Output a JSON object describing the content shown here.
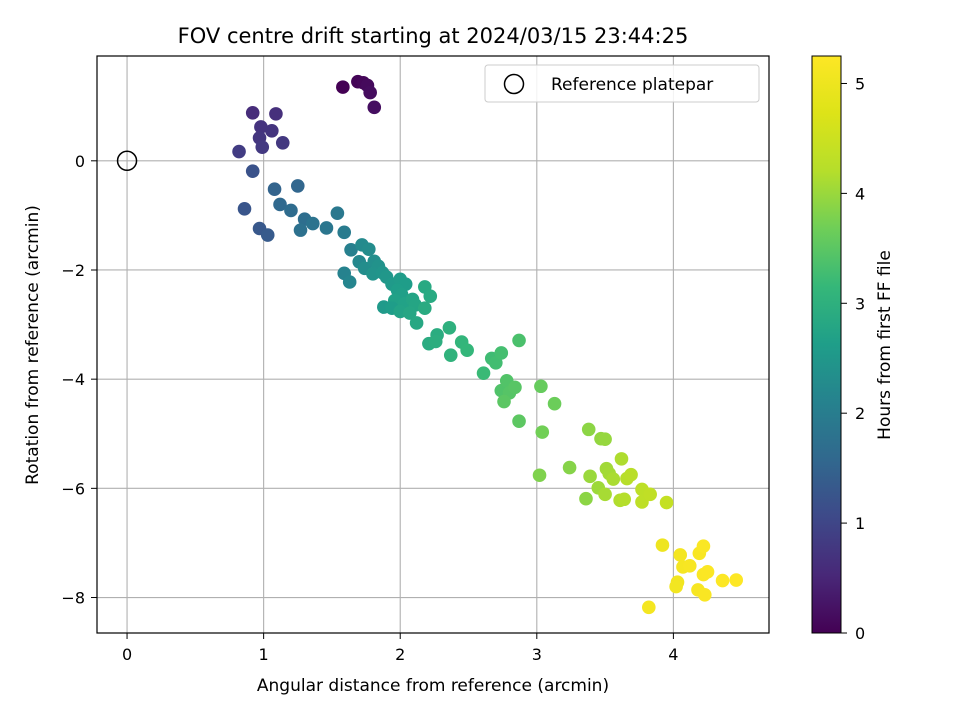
{
  "chart_data": {
    "type": "scatter",
    "title": "FOV centre drift starting at 2024/03/15 23:44:25",
    "xlabel": "Angular distance from reference (arcmin)",
    "ylabel": "Rotation from reference (arcmin)",
    "xlim": [
      -0.22,
      4.7
    ],
    "ylim": [
      -8.65,
      1.92
    ],
    "xticks": [
      0,
      1,
      2,
      3,
      4
    ],
    "yticks": [
      -8,
      -6,
      -4,
      -2,
      0
    ],
    "grid": true,
    "legend": {
      "label": "Reference platepar",
      "position": "top-right"
    },
    "reference_point": {
      "x": 0,
      "y": 0
    },
    "colorbar": {
      "label": "Hours from first FF file",
      "colormap": "viridis",
      "range": [
        0,
        5.25
      ],
      "ticks": [
        0,
        1,
        2,
        3,
        4,
        5
      ]
    },
    "points": [
      {
        "x": 1.58,
        "y": 1.35,
        "c": 0.0
      },
      {
        "x": 1.69,
        "y": 1.45,
        "c": 0.05
      },
      {
        "x": 1.73,
        "y": 1.43,
        "c": 0.08
      },
      {
        "x": 1.76,
        "y": 1.38,
        "c": 0.12
      },
      {
        "x": 1.78,
        "y": 1.25,
        "c": 0.15
      },
      {
        "x": 1.81,
        "y": 0.98,
        "c": 0.18
      },
      {
        "x": 0.92,
        "y": 0.88,
        "c": 0.6
      },
      {
        "x": 1.09,
        "y": 0.86,
        "c": 0.65
      },
      {
        "x": 0.98,
        "y": 0.62,
        "c": 0.7
      },
      {
        "x": 1.06,
        "y": 0.55,
        "c": 0.72
      },
      {
        "x": 0.97,
        "y": 0.42,
        "c": 0.75
      },
      {
        "x": 1.14,
        "y": 0.33,
        "c": 0.78
      },
      {
        "x": 0.99,
        "y": 0.25,
        "c": 0.8
      },
      {
        "x": 0.82,
        "y": 0.17,
        "c": 0.85
      },
      {
        "x": 0.92,
        "y": -0.19,
        "c": 1.2
      },
      {
        "x": 0.86,
        "y": -0.88,
        "c": 1.25
      },
      {
        "x": 1.08,
        "y": -0.52,
        "c": 1.5
      },
      {
        "x": 1.25,
        "y": -0.46,
        "c": 1.55
      },
      {
        "x": 1.12,
        "y": -0.8,
        "c": 1.6
      },
      {
        "x": 1.2,
        "y": -0.91,
        "c": 1.65
      },
      {
        "x": 1.3,
        "y": -1.07,
        "c": 1.7
      },
      {
        "x": 0.97,
        "y": -1.24,
        "c": 1.3
      },
      {
        "x": 1.03,
        "y": -1.36,
        "c": 1.35
      },
      {
        "x": 1.27,
        "y": -1.27,
        "c": 1.75
      },
      {
        "x": 1.36,
        "y": -1.15,
        "c": 1.8
      },
      {
        "x": 1.46,
        "y": -1.23,
        "c": 1.85
      },
      {
        "x": 1.54,
        "y": -0.96,
        "c": 1.9
      },
      {
        "x": 1.59,
        "y": -1.31,
        "c": 1.95
      },
      {
        "x": 1.64,
        "y": -1.63,
        "c": 2.05
      },
      {
        "x": 1.59,
        "y": -2.06,
        "c": 2.1
      },
      {
        "x": 1.63,
        "y": -2.22,
        "c": 2.15
      },
      {
        "x": 1.7,
        "y": -1.85,
        "c": 2.2
      },
      {
        "x": 1.72,
        "y": -1.54,
        "c": 2.25
      },
      {
        "x": 1.77,
        "y": -1.62,
        "c": 2.28
      },
      {
        "x": 1.74,
        "y": -1.97,
        "c": 2.3
      },
      {
        "x": 1.81,
        "y": -1.84,
        "c": 2.35
      },
      {
        "x": 1.84,
        "y": -1.93,
        "c": 2.4
      },
      {
        "x": 1.8,
        "y": -2.07,
        "c": 2.42
      },
      {
        "x": 1.87,
        "y": -2.05,
        "c": 2.45
      },
      {
        "x": 1.9,
        "y": -2.13,
        "c": 2.5
      },
      {
        "x": 1.94,
        "y": -2.26,
        "c": 2.55
      },
      {
        "x": 2.0,
        "y": -2.17,
        "c": 2.58
      },
      {
        "x": 2.04,
        "y": -2.26,
        "c": 2.6
      },
      {
        "x": 1.98,
        "y": -2.37,
        "c": 2.62
      },
      {
        "x": 2.01,
        "y": -2.45,
        "c": 2.65
      },
      {
        "x": 1.96,
        "y": -2.56,
        "c": 2.68
      },
      {
        "x": 2.03,
        "y": -2.62,
        "c": 2.7
      },
      {
        "x": 1.88,
        "y": -2.68,
        "c": 2.55
      },
      {
        "x": 1.94,
        "y": -2.7,
        "c": 2.6
      },
      {
        "x": 2.0,
        "y": -2.76,
        "c": 2.72
      },
      {
        "x": 2.09,
        "y": -2.54,
        "c": 2.75
      },
      {
        "x": 2.11,
        "y": -2.64,
        "c": 2.78
      },
      {
        "x": 2.07,
        "y": -2.79,
        "c": 2.8
      },
      {
        "x": 2.12,
        "y": -2.97,
        "c": 2.82
      },
      {
        "x": 2.18,
        "y": -2.31,
        "c": 2.85
      },
      {
        "x": 2.22,
        "y": -2.48,
        "c": 2.87
      },
      {
        "x": 2.18,
        "y": -2.7,
        "c": 2.88
      },
      {
        "x": 2.21,
        "y": -3.35,
        "c": 2.9
      },
      {
        "x": 2.27,
        "y": -3.19,
        "c": 2.92
      },
      {
        "x": 2.26,
        "y": -3.31,
        "c": 2.95
      },
      {
        "x": 2.36,
        "y": -3.06,
        "c": 3.0
      },
      {
        "x": 2.37,
        "y": -3.56,
        "c": 3.05
      },
      {
        "x": 2.45,
        "y": -3.32,
        "c": 3.1
      },
      {
        "x": 2.49,
        "y": -3.47,
        "c": 3.12
      },
      {
        "x": 2.61,
        "y": -3.89,
        "c": 3.2
      },
      {
        "x": 2.67,
        "y": -3.62,
        "c": 3.25
      },
      {
        "x": 2.7,
        "y": -3.7,
        "c": 3.28
      },
      {
        "x": 2.74,
        "y": -3.52,
        "c": 3.3
      },
      {
        "x": 2.87,
        "y": -3.29,
        "c": 3.35
      },
      {
        "x": 2.74,
        "y": -4.21,
        "c": 3.4
      },
      {
        "x": 2.78,
        "y": -4.03,
        "c": 3.42
      },
      {
        "x": 2.8,
        "y": -4.25,
        "c": 3.45
      },
      {
        "x": 2.84,
        "y": -4.15,
        "c": 3.47
      },
      {
        "x": 2.76,
        "y": -4.41,
        "c": 3.5
      },
      {
        "x": 2.87,
        "y": -4.77,
        "c": 3.52
      },
      {
        "x": 3.03,
        "y": -4.13,
        "c": 3.6
      },
      {
        "x": 3.13,
        "y": -4.45,
        "c": 3.65
      },
      {
        "x": 3.04,
        "y": -4.97,
        "c": 3.7
      },
      {
        "x": 3.38,
        "y": -4.92,
        "c": 3.9
      },
      {
        "x": 3.47,
        "y": -5.09,
        "c": 3.95
      },
      {
        "x": 3.5,
        "y": -5.1,
        "c": 3.97
      },
      {
        "x": 3.02,
        "y": -5.76,
        "c": 3.8
      },
      {
        "x": 3.24,
        "y": -5.62,
        "c": 3.85
      },
      {
        "x": 3.36,
        "y": -6.19,
        "c": 3.9
      },
      {
        "x": 3.39,
        "y": -5.78,
        "c": 4.0
      },
      {
        "x": 3.45,
        "y": -5.99,
        "c": 4.02
      },
      {
        "x": 3.51,
        "y": -5.64,
        "c": 4.05
      },
      {
        "x": 3.53,
        "y": -5.73,
        "c": 4.07
      },
      {
        "x": 3.5,
        "y": -6.11,
        "c": 4.1
      },
      {
        "x": 3.56,
        "y": -5.83,
        "c": 4.12
      },
      {
        "x": 3.62,
        "y": -5.46,
        "c": 4.15
      },
      {
        "x": 3.61,
        "y": -6.22,
        "c": 4.17
      },
      {
        "x": 3.64,
        "y": -6.2,
        "c": 4.2
      },
      {
        "x": 3.66,
        "y": -5.82,
        "c": 4.22
      },
      {
        "x": 3.69,
        "y": -5.75,
        "c": 4.25
      },
      {
        "x": 3.77,
        "y": -6.02,
        "c": 4.3
      },
      {
        "x": 3.77,
        "y": -6.25,
        "c": 4.32
      },
      {
        "x": 3.83,
        "y": -6.11,
        "c": 4.35
      },
      {
        "x": 3.95,
        "y": -6.26,
        "c": 4.4
      },
      {
        "x": 3.92,
        "y": -7.04,
        "c": 5.0
      },
      {
        "x": 4.03,
        "y": -7.72,
        "c": 5.05
      },
      {
        "x": 4.02,
        "y": -7.8,
        "c": 5.07
      },
      {
        "x": 4.05,
        "y": -7.22,
        "c": 5.1
      },
      {
        "x": 4.07,
        "y": -7.44,
        "c": 5.12
      },
      {
        "x": 4.12,
        "y": -7.42,
        "c": 5.15
      },
      {
        "x": 4.19,
        "y": -7.19,
        "c": 5.17
      },
      {
        "x": 4.22,
        "y": -7.06,
        "c": 5.2
      },
      {
        "x": 4.18,
        "y": -7.86,
        "c": 5.15
      },
      {
        "x": 4.23,
        "y": -7.95,
        "c": 5.18
      },
      {
        "x": 4.22,
        "y": -7.58,
        "c": 5.2
      },
      {
        "x": 4.25,
        "y": -7.53,
        "c": 5.22
      },
      {
        "x": 4.36,
        "y": -7.69,
        "c": 5.23
      },
      {
        "x": 4.46,
        "y": -7.68,
        "c": 5.25
      },
      {
        "x": 3.82,
        "y": -8.18,
        "c": 5.1
      }
    ]
  }
}
